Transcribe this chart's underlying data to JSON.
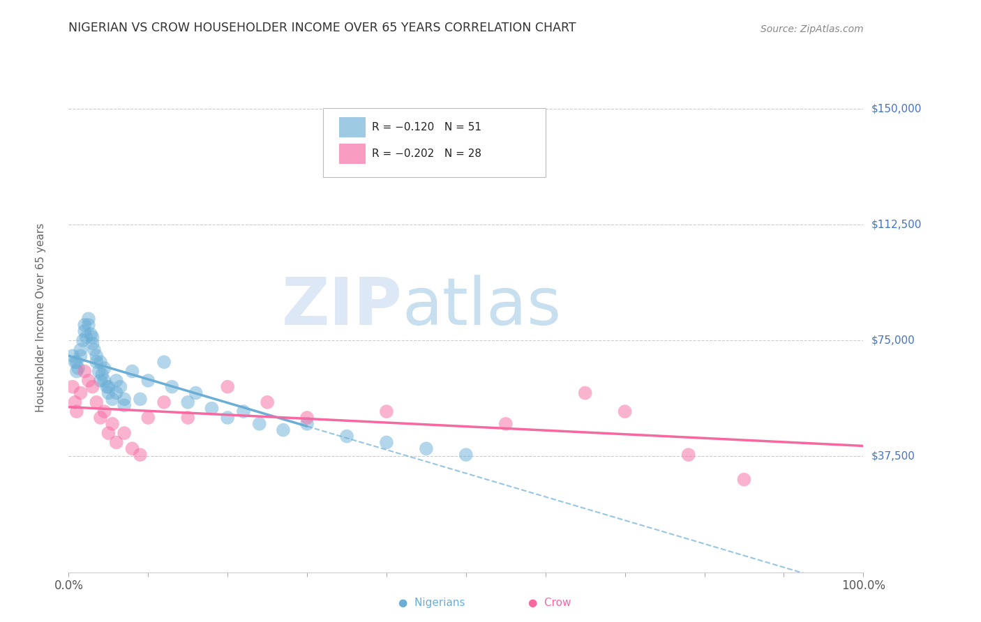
{
  "title": "NIGERIAN VS CROW HOUSEHOLDER INCOME OVER 65 YEARS CORRELATION CHART",
  "source": "Source: ZipAtlas.com",
  "ylabel": "Householder Income Over 65 years",
  "legend_entries": [
    {
      "label": "R = −0.120   N = 51",
      "color": "#6aaed6"
    },
    {
      "label": "R = −0.202   N = 28",
      "color": "#f768a1"
    }
  ],
  "legend_label_nigerians": "Nigerians",
  "legend_label_crow": "Crow",
  "y_ticks": [
    37500,
    75000,
    112500,
    150000
  ],
  "y_tick_labels": [
    "$37,500",
    "$75,000",
    "$112,500",
    "$150,000"
  ],
  "x_min": 0.0,
  "x_max": 1.0,
  "y_min": 0,
  "y_max": 165000,
  "nigerian_color": "#6aaed6",
  "crow_color": "#f768a1",
  "nigerian_x": [
    0.005,
    0.008,
    0.01,
    0.01,
    0.012,
    0.015,
    0.015,
    0.018,
    0.02,
    0.02,
    0.022,
    0.025,
    0.025,
    0.028,
    0.03,
    0.03,
    0.032,
    0.035,
    0.035,
    0.038,
    0.04,
    0.04,
    0.042,
    0.045,
    0.045,
    0.048,
    0.05,
    0.05,
    0.055,
    0.06,
    0.06,
    0.065,
    0.07,
    0.07,
    0.08,
    0.09,
    0.1,
    0.12,
    0.13,
    0.15,
    0.16,
    0.18,
    0.2,
    0.22,
    0.24,
    0.27,
    0.3,
    0.35,
    0.4,
    0.45,
    0.5
  ],
  "nigerian_y": [
    70000,
    68000,
    65000,
    68000,
    66000,
    72000,
    70000,
    75000,
    78000,
    80000,
    76000,
    82000,
    80000,
    77000,
    74000,
    76000,
    72000,
    70000,
    68000,
    65000,
    68000,
    62000,
    64000,
    66000,
    62000,
    60000,
    60000,
    58000,
    56000,
    62000,
    58000,
    60000,
    54000,
    56000,
    65000,
    56000,
    62000,
    68000,
    60000,
    55000,
    58000,
    53000,
    50000,
    52000,
    48000,
    46000,
    48000,
    44000,
    42000,
    40000,
    38000
  ],
  "crow_x": [
    0.005,
    0.008,
    0.01,
    0.015,
    0.02,
    0.025,
    0.03,
    0.035,
    0.04,
    0.045,
    0.05,
    0.055,
    0.06,
    0.07,
    0.08,
    0.09,
    0.1,
    0.12,
    0.15,
    0.2,
    0.25,
    0.3,
    0.4,
    0.55,
    0.65,
    0.7,
    0.78,
    0.85
  ],
  "crow_y": [
    60000,
    55000,
    52000,
    58000,
    65000,
    62000,
    60000,
    55000,
    50000,
    52000,
    45000,
    48000,
    42000,
    45000,
    40000,
    38000,
    50000,
    55000,
    50000,
    60000,
    55000,
    50000,
    52000,
    48000,
    58000,
    52000,
    38000,
    30000
  ],
  "background_color": "#ffffff",
  "grid_color": "#cccccc",
  "title_color": "#333333",
  "axis_label_color": "#666666",
  "tick_label_color": "#4472c4",
  "source_color": "#888888"
}
